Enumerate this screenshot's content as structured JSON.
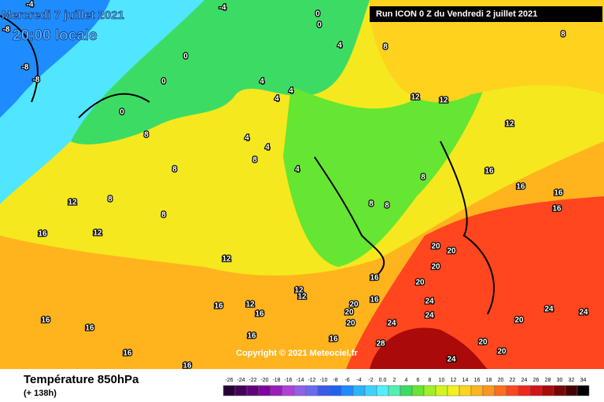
{
  "header": {
    "valid_time": "Mercredi 7 juillet 2021",
    "local_time": "20:00 locale",
    "run": "Run ICON 0 Z du Vendredi 2 juillet 2021"
  },
  "map": {
    "copyright": "Copyright © 2021 Meteociel.fr",
    "contour_labels": [
      "-4",
      "-4",
      "-8",
      "-8",
      "-8",
      "0",
      "0",
      "0",
      "0",
      "0",
      "4",
      "4",
      "4",
      "4",
      "4",
      "4",
      "4",
      "8",
      "8",
      "8",
      "8",
      "8",
      "8",
      "8",
      "8",
      "8",
      "8",
      "12",
      "12",
      "12",
      "12",
      "12",
      "12",
      "12",
      "12",
      "12",
      "16",
      "16",
      "16",
      "16",
      "16",
      "16",
      "16",
      "16",
      "16",
      "16",
      "16",
      "16",
      "16",
      "16",
      "16",
      "20",
      "20",
      "20",
      "20",
      "20",
      "20",
      "20",
      "20",
      "20",
      "20",
      "24",
      "24",
      "24",
      "24",
      "24",
      "24",
      "28"
    ]
  },
  "legend": {
    "title": "Température 850hPa",
    "lead": "(+ 138h)",
    "scale": [
      {
        "label": "-26",
        "color": "#2a0038"
      },
      {
        "label": "-24",
        "color": "#45005a"
      },
      {
        "label": "-22",
        "color": "#62007e"
      },
      {
        "label": "-20",
        "color": "#8000a0"
      },
      {
        "label": "-18",
        "color": "#9c1cbc"
      },
      {
        "label": "-16",
        "color": "#b040d8"
      },
      {
        "label": "-14",
        "color": "#9060e8"
      },
      {
        "label": "-12",
        "color": "#6a6af0"
      },
      {
        "label": "-10",
        "color": "#3c5ae8"
      },
      {
        "label": "-8",
        "color": "#1e64f0"
      },
      {
        "label": "-6",
        "color": "#1e8cff"
      },
      {
        "label": "-4",
        "color": "#28b4ff"
      },
      {
        "label": "-2",
        "color": "#3cd2ff"
      },
      {
        "label": "0.0",
        "color": "#50f0ff"
      },
      {
        "label": "2",
        "color": "#50f0b4"
      },
      {
        "label": "4",
        "color": "#3cdc64"
      },
      {
        "label": "6",
        "color": "#64e632"
      },
      {
        "label": "8",
        "color": "#a0f028"
      },
      {
        "label": "10",
        "color": "#d2f51e"
      },
      {
        "label": "12",
        "color": "#f5f01e"
      },
      {
        "label": "14",
        "color": "#ffd21e"
      },
      {
        "label": "16",
        "color": "#ffb41e"
      },
      {
        "label": "18",
        "color": "#ff961e"
      },
      {
        "label": "20",
        "color": "#ff6e1e"
      },
      {
        "label": "22",
        "color": "#ff461e"
      },
      {
        "label": "24",
        "color": "#f0281e"
      },
      {
        "label": "26",
        "color": "#d21414"
      },
      {
        "label": "28",
        "color": "#aa0a0a"
      },
      {
        "label": "30",
        "color": "#780505"
      },
      {
        "label": "32",
        "color": "#460202"
      },
      {
        "label": "34",
        "color": "#000000"
      }
    ]
  }
}
